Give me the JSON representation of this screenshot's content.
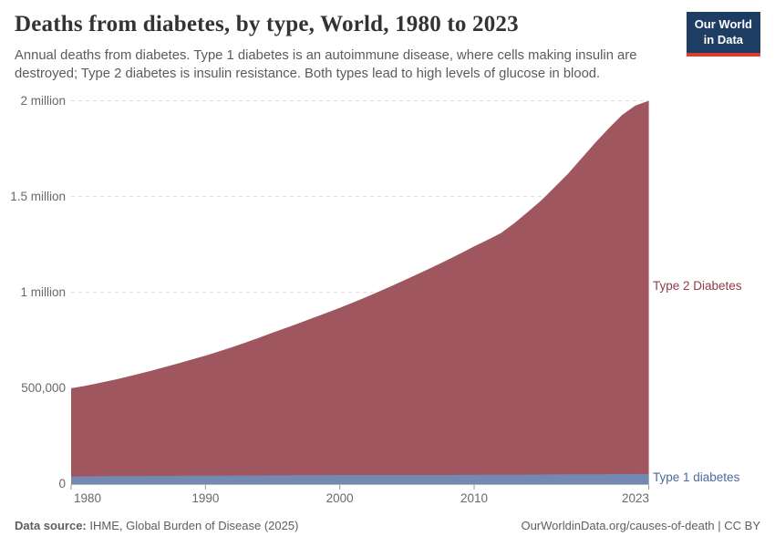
{
  "header": {
    "title": "Deaths from diabetes, by type, World, 1980 to 2023",
    "subtitle": "Annual deaths from diabetes. Type 1 diabetes is an autoimmune disease, where cells making insulin are destroyed; Type 2 diabetes is insulin resistance. Both types lead to high levels of glucose in blood.",
    "logo": {
      "line1": "Our World",
      "line2": "in Data",
      "bg_color": "#1d3d63",
      "accent_color": "#dc3e31"
    }
  },
  "chart_data": {
    "type": "area",
    "stacked": true,
    "title": "Deaths from diabetes, by type, World, 1980 to 2023",
    "xlabel": "",
    "ylabel": "",
    "xlim": [
      1980,
      2023
    ],
    "ylim": [
      0,
      2000000
    ],
    "grid": "dashed-horizontal",
    "legend_position": "labels-at-right-edge",
    "x": [
      1980,
      1981,
      1982,
      1983,
      1984,
      1985,
      1986,
      1987,
      1988,
      1989,
      1990,
      1991,
      1992,
      1993,
      1994,
      1995,
      1996,
      1997,
      1998,
      1999,
      2000,
      2001,
      2002,
      2003,
      2004,
      2005,
      2006,
      2007,
      2008,
      2009,
      2010,
      2011,
      2012,
      2013,
      2014,
      2015,
      2016,
      2017,
      2018,
      2019,
      2020,
      2021,
      2022,
      2023
    ],
    "series": [
      {
        "name": "Type 1 diabetes",
        "color": "#7489B1",
        "label_color": "#4A6AA0",
        "values": [
          40000,
          40400,
          40800,
          41200,
          41600,
          42000,
          42400,
          42800,
          43200,
          43600,
          44000,
          44300,
          44600,
          44900,
          45200,
          45500,
          45800,
          46100,
          46400,
          46700,
          47000,
          47100,
          47200,
          47300,
          47400,
          47500,
          47600,
          47700,
          47800,
          47900,
          48000,
          48400,
          48800,
          49200,
          49500,
          49900,
          50300,
          50700,
          51100,
          51500,
          51800,
          52200,
          52600,
          53000
        ]
      },
      {
        "name": "Type 2 Diabetes",
        "color": "#A0565F",
        "label_color": "#8F3C4C",
        "values": [
          460000,
          471600,
          485200,
          499800,
          515400,
          532000,
          549600,
          568200,
          586800,
          606400,
          626000,
          647700,
          670400,
          694100,
          718800,
          744500,
          769200,
          794900,
          820600,
          846300,
          873000,
          900900,
          929800,
          959700,
          990600,
          1022500,
          1054400,
          1087300,
          1121200,
          1156100,
          1192000,
          1225600,
          1261200,
          1312800,
          1370500,
          1430100,
          1499700,
          1569300,
          1648900,
          1728500,
          1803200,
          1872800,
          1922400,
          1947000
        ]
      }
    ],
    "yticks": [
      {
        "value": 0,
        "label": "0"
      },
      {
        "value": 500000,
        "label": "500,000"
      },
      {
        "value": 1000000,
        "label": "1 million"
      },
      {
        "value": 1500000,
        "label": "1.5 million"
      },
      {
        "value": 2000000,
        "label": "2 million"
      }
    ],
    "xticks": [
      {
        "year": 1980,
        "label": "1980"
      },
      {
        "year": 1990,
        "label": "1990"
      },
      {
        "year": 2000,
        "label": "2000"
      },
      {
        "year": 2010,
        "label": "2010"
      },
      {
        "year": 2023,
        "label": "2023"
      }
    ]
  },
  "footer": {
    "source_label": "Data source:",
    "source_value": "IHME, Global Burden of Disease (2025)",
    "credit": "OurWorldinData.org/causes-of-death | CC BY"
  }
}
